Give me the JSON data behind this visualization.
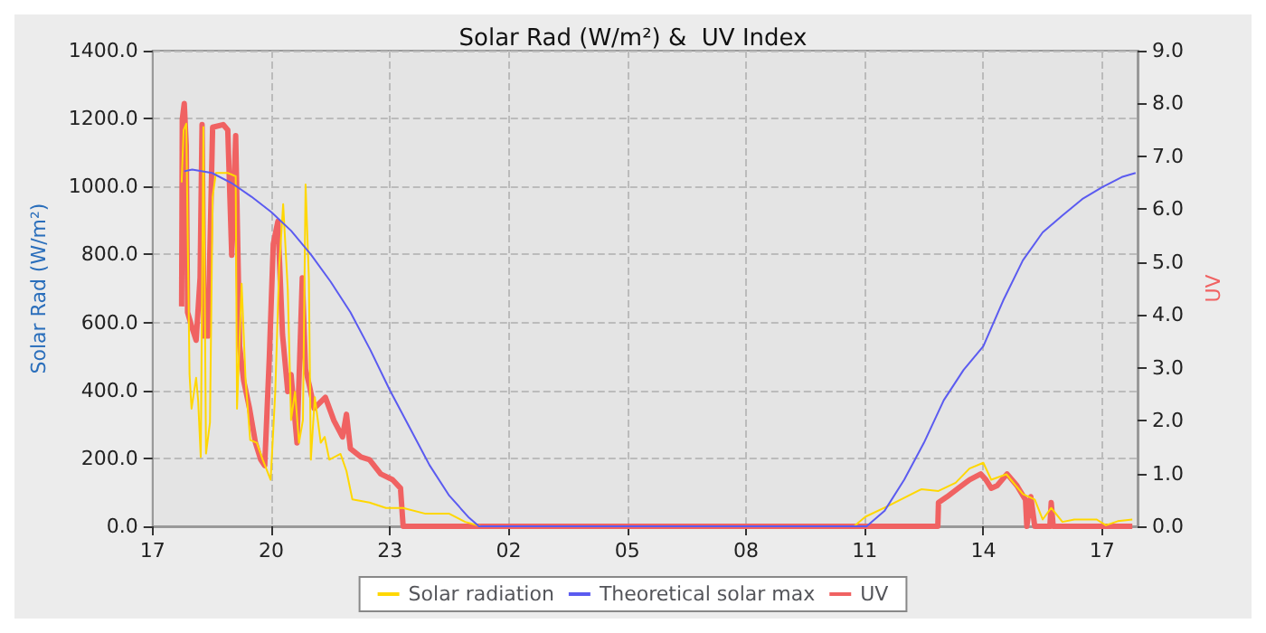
{
  "chart_data": {
    "type": "line",
    "title": "Solar Rad (W/m²) &  UV Index",
    "ylabel": "Solar Rad (W/m²)",
    "y2label": "UV",
    "xlim": [
      "--01-01T17:00",
      "--01-02T17:54"
    ],
    "xticks": [
      {
        "value": "--01-01T17:00",
        "label": "17"
      },
      {
        "value": "--01-01T20:00",
        "label": "20"
      },
      {
        "value": "--01-01T23:00",
        "label": "23"
      },
      {
        "value": "--01-02T02:00",
        "label": "02"
      },
      {
        "value": "--01-02T05:00",
        "label": "05"
      },
      {
        "value": "--01-02T08:00",
        "label": "08"
      },
      {
        "value": "--01-02T11:00",
        "label": "11"
      },
      {
        "value": "--01-02T14:00",
        "label": "14"
      },
      {
        "value": "--01-02T17:00",
        "label": "17"
      }
    ],
    "ylim": [
      0,
      1400
    ],
    "yticks": [
      {
        "value": 0,
        "label": "0.0"
      },
      {
        "value": 200,
        "label": "200.0"
      },
      {
        "value": 400,
        "label": "400.0"
      },
      {
        "value": 600,
        "label": "600.0"
      },
      {
        "value": 800,
        "label": "800.0"
      },
      {
        "value": 1000,
        "label": "1000.0"
      },
      {
        "value": 1200,
        "label": "1200.0"
      },
      {
        "value": 1400,
        "label": "1400.0"
      }
    ],
    "y2lim": [
      0,
      9
    ],
    "y2ticks": [
      {
        "value": 0,
        "label": "0.0"
      },
      {
        "value": 1,
        "label": "1.0"
      },
      {
        "value": 2,
        "label": "2.0"
      },
      {
        "value": 3,
        "label": "3.0"
      },
      {
        "value": 4,
        "label": "4.0"
      },
      {
        "value": 5,
        "label": "5.0"
      },
      {
        "value": 6,
        "label": "6.0"
      },
      {
        "value": 7,
        "label": "7.0"
      },
      {
        "value": 8,
        "label": "8.0"
      },
      {
        "value": 9,
        "label": "9.0"
      }
    ],
    "grid": true,
    "legend": "bottom",
    "marker": "none",
    "line_style": "solid",
    "series": [
      {
        "name": "Solar radiation",
        "color": "#ffd700",
        "x": [
          "--01-01T17:44",
          "--01-01T17:47",
          "--01-01T17:51",
          "--01-01T17:56",
          "--01-01T17:59",
          "--01-01T18:06",
          "--01-01T18:09",
          "--01-01T18:13",
          "--01-01T18:17",
          "--01-01T18:21",
          "--01-01T18:27",
          "--01-01T18:31",
          "--01-01T18:36",
          "--01-01T18:54",
          "--01-01T19:06",
          "--01-01T19:08",
          "--01-01T19:15",
          "--01-01T19:21",
          "--01-01T19:28",
          "--01-01T19:38",
          "--01-01T19:47",
          "--01-01T19:59",
          "--01-01T20:02",
          "--01-01T20:06",
          "--01-01T20:12",
          "--01-01T20:18",
          "--01-01T20:25",
          "--01-01T20:30",
          "--01-01T20:36",
          "--01-01T20:42",
          "--01-01T20:48",
          "--01-01T20:52",
          "--01-01T20:57",
          "--01-01T21:00",
          "--01-01T21:06",
          "--01-01T21:15",
          "--01-01T21:21",
          "--01-01T21:28",
          "--01-01T21:45",
          "--01-01T21:54",
          "--01-01T22:03",
          "--01-01T22:29",
          "--01-01T22:54",
          "--01-01T23:20",
          "--01-01T23:54",
          "--01-02T00:30",
          "--01-02T00:54",
          "--01-02T01:18",
          "--01-02T10:44",
          "--01-02T11:01",
          "--01-02T11:36",
          "--01-02T12:26",
          "--01-02T12:52",
          "--01-02T13:18",
          "--01-02T13:39",
          "--01-02T14:00",
          "--01-02T14:12",
          "--01-02T14:35",
          "--01-02T15:00",
          "--01-02T15:18",
          "--01-02T15:30",
          "--01-02T15:43",
          "--01-02T16:00",
          "--01-02T16:18",
          "--01-02T16:52",
          "--01-02T17:06",
          "--01-02T17:24",
          "--01-02T17:46"
        ],
        "values": [
          1012,
          1166,
          1185,
          447,
          346,
          437,
          372,
          204,
          1175,
          214,
          306,
          970,
          1040,
          1040,
          1030,
          346,
          714,
          430,
          254,
          246,
          196,
          137,
          246,
          396,
          764,
          948,
          697,
          313,
          396,
          246,
          313,
          1006,
          730,
          196,
          380,
          246,
          263,
          196,
          213,
          163,
          79,
          70,
          54,
          54,
          37,
          37,
          13,
          0,
          0,
          28,
          60,
          109,
          104,
          128,
          170,
          187,
          137,
          153,
          95,
          79,
          20,
          54,
          13,
          20,
          20,
          3,
          15,
          20
        ]
      },
      {
        "name": "Theoretical solar max",
        "color": "#5b5bf0",
        "x": [
          "--01-01T17:48",
          "--01-01T18:00",
          "--01-01T18:30",
          "--01-01T19:00",
          "--01-01T19:30",
          "--01-01T20:00",
          "--01-01T20:30",
          "--01-01T21:00",
          "--01-01T21:30",
          "--01-01T22:00",
          "--01-01T22:30",
          "--01-01T23:00",
          "--01-01T23:30",
          "--01-02T00:00",
          "--01-02T00:30",
          "--01-02T01:00",
          "--01-02T01:15",
          "--01-02T11:03",
          "--01-02T11:30",
          "--01-02T12:00",
          "--01-02T12:30",
          "--01-02T13:00",
          "--01-02T13:30",
          "--01-02T14:00",
          "--01-02T14:30",
          "--01-02T15:00",
          "--01-02T15:30",
          "--01-02T16:00",
          "--01-02T16:30",
          "--01-02T17:00",
          "--01-02T17:30",
          "--01-02T17:51"
        ],
        "values": [
          1045,
          1050,
          1040,
          1010,
          970,
          925,
          870,
          800,
          720,
          630,
          520,
          400,
          290,
          180,
          90,
          25,
          0,
          0,
          45,
          137,
          246,
          371,
          460,
          530,
          664,
          783,
          865,
          915,
          963,
          998,
          1028,
          1040
        ]
      },
      {
        "name": "UV",
        "color": "#f06262",
        "axis": "y2",
        "x": [
          "--01-01T17:44",
          "--01-01T17:45",
          "--01-01T17:48",
          "--01-01T17:51",
          "--01-01T17:53",
          "--01-01T18:00",
          "--01-01T18:06",
          "--01-01T18:12",
          "--01-01T18:15",
          "--01-01T18:18",
          "--01-01T18:24",
          "--01-01T18:31",
          "--01-01T18:47",
          "--01-01T18:54",
          "--01-01T19:00",
          "--01-01T19:06",
          "--01-01T19:12",
          "--01-01T19:18",
          "--01-01T19:27",
          "--01-01T19:36",
          "--01-01T19:44",
          "--01-01T19:50",
          "--01-01T19:57",
          "--01-01T20:03",
          "--01-01T20:10",
          "--01-01T20:17",
          "--01-01T20:25",
          "--01-01T20:30",
          "--01-01T20:39",
          "--01-01T20:47",
          "--01-01T20:52",
          "--01-01T20:58",
          "--01-01T21:05",
          "--01-01T21:13",
          "--01-01T21:22",
          "--01-01T21:35",
          "--01-01T21:48",
          "--01-01T21:54",
          "--01-01T22:00",
          "--01-01T22:16",
          "--01-01T22:29",
          "--01-01T22:46",
          "--01-01T23:04",
          "--01-01T23:16",
          "--01-01T23:20",
          "--01-02T12:51",
          "--01-02T12:52",
          "--01-02T13:05",
          "--01-02T13:22",
          "--01-02T13:39",
          "--01-02T13:56",
          "--01-02T14:04",
          "--01-02T14:12",
          "--01-02T14:21",
          "--01-02T14:36",
          "--01-02T14:51",
          "--01-02T15:04",
          "--01-02T15:06",
          "--01-02T15:12",
          "--01-02T15:18",
          "--01-02T15:41",
          "--01-02T15:43",
          "--01-02T15:46",
          "--01-02T17:46"
        ],
        "values": [
          4.16,
          7.7,
          8.0,
          7.2,
          4.05,
          3.75,
          3.52,
          4.7,
          7.6,
          3.6,
          3.6,
          7.55,
          7.6,
          7.5,
          5.13,
          7.39,
          3.41,
          2.76,
          2.23,
          1.58,
          1.26,
          1.15,
          3.19,
          5.34,
          5.77,
          3.63,
          2.55,
          2.87,
          1.58,
          4.7,
          2.97,
          2.65,
          2.23,
          2.33,
          2.44,
          2.0,
          1.69,
          2.12,
          1.47,
          1.31,
          1.26,
          0.99,
          0.88,
          0.72,
          0,
          0,
          0.45,
          0.56,
          0.72,
          0.88,
          0.99,
          0.88,
          0.72,
          0.77,
          0.99,
          0.77,
          0.5,
          0,
          0.56,
          0,
          0,
          0.45,
          0,
          0
        ]
      }
    ]
  }
}
